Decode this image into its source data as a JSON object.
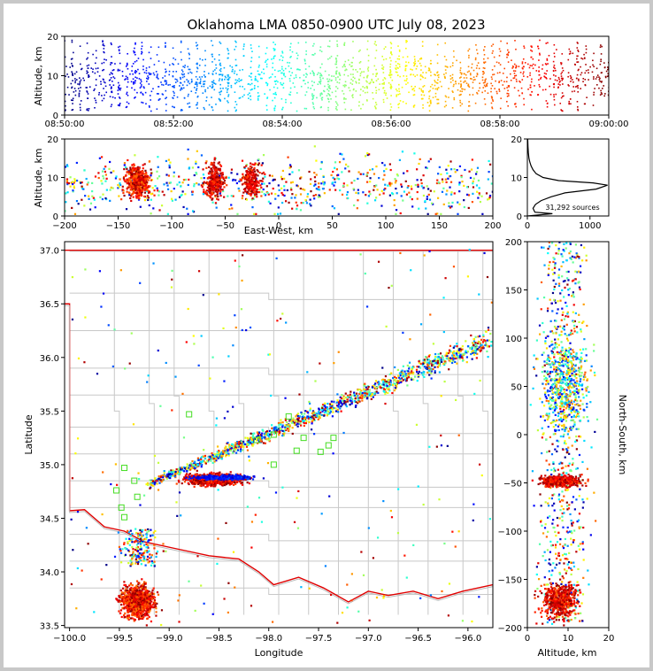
{
  "title": "Oklahoma LMA 0850-0900 UTC July 08, 2023",
  "source_count_label": "31,292 sources",
  "chart_data": [
    {
      "panel": "altitude-time",
      "type": "scatter",
      "xlabel": "",
      "ylabel": "Altitude, km",
      "xlim": [
        "08:50:00",
        "09:00:00"
      ],
      "ylim": [
        0,
        20
      ],
      "xticks": [
        "08:50:00",
        "08:52:00",
        "08:54:00",
        "08:56:00",
        "08:58:00",
        "09:00:00"
      ],
      "yticks": [
        0,
        10,
        20
      ],
      "color_encoding": "time (blue to dark red)"
    },
    {
      "panel": "altitude-east-west",
      "type": "scatter",
      "xlabel": "East-West, km",
      "ylabel": "Altitude, km",
      "xlim": [
        -200,
        200
      ],
      "ylim": [
        0,
        20
      ],
      "xticks": [
        -200,
        -150,
        -100,
        -50,
        0,
        50,
        100,
        150,
        200
      ],
      "yticks": [
        0,
        10,
        20
      ]
    },
    {
      "panel": "altitude-histogram",
      "type": "line",
      "xlim": [
        0,
        1300
      ],
      "ylim": [
        0,
        20
      ],
      "xticks": [
        0,
        1000
      ],
      "yticks": [
        0,
        10,
        20
      ],
      "x": [
        0,
        150,
        200,
        250,
        300,
        350,
        400,
        450,
        500,
        550,
        600,
        650,
        700,
        750,
        800,
        850,
        900,
        950,
        1000,
        1050,
        1100,
        1150,
        1200,
        1220
      ],
      "y": [
        20,
        18,
        16.5,
        15.5,
        14.5,
        13.5,
        12.5,
        11.5,
        10.8,
        10.2,
        9.8,
        9.5,
        9.3,
        9.2,
        9.1,
        9.0,
        8.8,
        8.6,
        8.4,
        8.2,
        8.0,
        7.5,
        7.0,
        6.5
      ],
      "profile": [
        [
          0,
          0.0
        ],
        [
          400,
          0.6
        ],
        [
          120,
          1.0
        ],
        [
          90,
          2.0
        ],
        [
          130,
          3.0
        ],
        [
          220,
          4.0
        ],
        [
          380,
          5.0
        ],
        [
          600,
          6.0
        ],
        [
          1100,
          7.0
        ],
        [
          1280,
          8.0
        ],
        [
          1050,
          8.6
        ],
        [
          500,
          9.2
        ],
        [
          250,
          10.0
        ],
        [
          140,
          11.0
        ],
        [
          90,
          12.0
        ],
        [
          60,
          13.0
        ],
        [
          40,
          14.0
        ],
        [
          25,
          15.0
        ],
        [
          15,
          16.5
        ],
        [
          10,
          18.0
        ],
        [
          5,
          20.0
        ]
      ]
    },
    {
      "panel": "plan-view",
      "type": "scatter",
      "xlabel": "Longitude",
      "ylabel": "Latitude",
      "xlim": [
        -100.05,
        -95.75
      ],
      "ylim": [
        33.48,
        37.08
      ],
      "xticks": [
        -100.0,
        -99.5,
        -99.0,
        -98.5,
        -98.0,
        -97.5,
        -97.0,
        -96.5,
        -96.0
      ],
      "xtick_labels": [
        "−100.0",
        "−99.5",
        "−99.0",
        "−98.5",
        "−98.0",
        "−97.5",
        "−97.0",
        "−96.5",
        "−96.0"
      ],
      "yticks": [
        33.5,
        34.0,
        34.5,
        35.0,
        35.5,
        36.0,
        36.5,
        37.0
      ],
      "stations": [
        [
          -98.8,
          35.47
        ],
        [
          -97.8,
          35.45
        ],
        [
          -97.95,
          35.28
        ],
        [
          -97.65,
          35.25
        ],
        [
          -98.12,
          35.23
        ],
        [
          -97.35,
          35.25
        ],
        [
          -97.4,
          35.18
        ],
        [
          -97.48,
          35.12
        ],
        [
          -97.72,
          35.13
        ],
        [
          -97.95,
          35.0
        ],
        [
          -99.45,
          34.97
        ],
        [
          -99.35,
          34.85
        ],
        [
          -99.53,
          34.76
        ],
        [
          -99.32,
          34.7
        ],
        [
          -99.48,
          34.6
        ],
        [
          -99.45,
          34.51
        ]
      ]
    },
    {
      "panel": "north-south-altitude",
      "type": "scatter",
      "xlabel": "Altitude, km",
      "ylabel": "North-South, km",
      "xlim": [
        0,
        20
      ],
      "ylim": [
        -200,
        200
      ],
      "xticks": [
        0,
        10,
        20
      ],
      "yticks": [
        -200,
        -150,
        -100,
        -50,
        0,
        50,
        100,
        150,
        200
      ]
    }
  ]
}
